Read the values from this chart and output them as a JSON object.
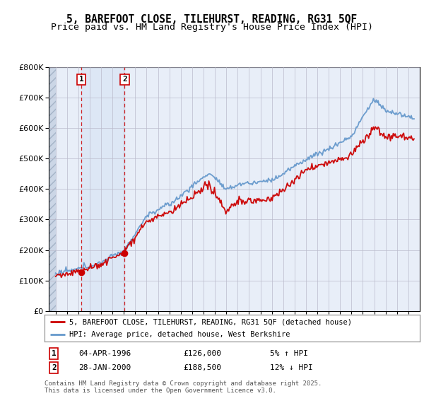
{
  "title": "5, BAREFOOT CLOSE, TILEHURST, READING, RG31 5QF",
  "subtitle": "Price paid vs. HM Land Registry's House Price Index (HPI)",
  "ylim": [
    0,
    800000
  ],
  "yticks": [
    0,
    100000,
    200000,
    300000,
    400000,
    500000,
    600000,
    700000,
    800000
  ],
  "ytick_labels": [
    "£0",
    "£100K",
    "£200K",
    "£300K",
    "£400K",
    "£500K",
    "£600K",
    "£700K",
    "£800K"
  ],
  "sale1": {
    "date_num": 1996.26,
    "price": 126000,
    "label": "1",
    "pct": "5% ↑ HPI",
    "date_str": "04-APR-1996"
  },
  "sale2": {
    "date_num": 2000.07,
    "price": 188500,
    "label": "2",
    "pct": "12% ↓ HPI",
    "date_str": "28-JAN-2000"
  },
  "legend_line1": "5, BAREFOOT CLOSE, TILEHURST, READING, RG31 5QF (detached house)",
  "legend_line2": "HPI: Average price, detached house, West Berkshire",
  "footer": "Contains HM Land Registry data © Crown copyright and database right 2025.\nThis data is licensed under the Open Government Licence v3.0.",
  "red_color": "#cc0000",
  "blue_color": "#6699cc",
  "background_color": "#e8eef8",
  "hatch_background": "#d0d8e8",
  "span_color": "#dce6f5",
  "grid_color": "#bbbbcc",
  "title_fontsize": 10.5,
  "subtitle_fontsize": 9.5
}
